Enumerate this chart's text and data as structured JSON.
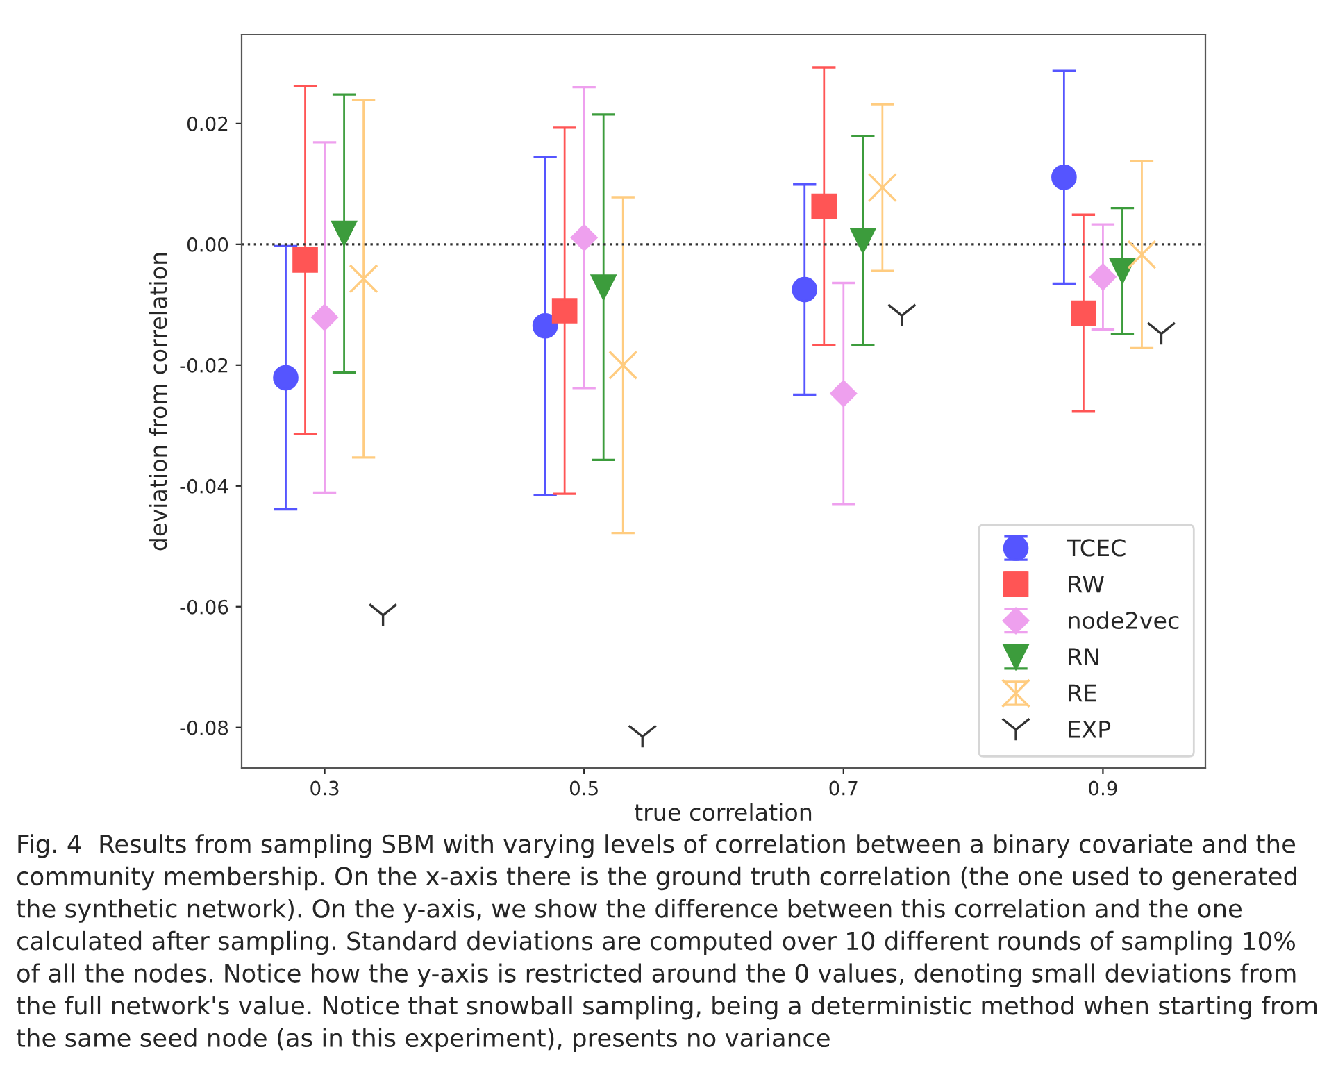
{
  "chart_data": {
    "type": "scatter",
    "xlabel": "true correlation",
    "ylabel": "deviation from correlation",
    "series": [
      {
        "name": "TCEC",
        "color": "#5555ff",
        "marker": "circle",
        "x": [
          0.27,
          0.47,
          0.67,
          0.87
        ],
        "values": [
          -0.0221,
          -0.0135,
          -0.0075,
          0.0111
        ],
        "errors": [
          0.0218,
          0.028,
          0.0174,
          0.0176
        ]
      },
      {
        "name": "RW",
        "color": "#ff5555",
        "marker": "square",
        "x": [
          0.285,
          0.485,
          0.685,
          0.885
        ],
        "values": [
          -0.0026,
          -0.011,
          0.0063,
          -0.0114
        ],
        "errors": [
          0.0288,
          0.0303,
          0.023,
          0.0163
        ]
      },
      {
        "name": "node2vec",
        "color": "#eea0ee",
        "marker": "diamond",
        "x": [
          0.3,
          0.5,
          0.7,
          0.9
        ],
        "values": [
          -0.0121,
          0.0011,
          -0.0247,
          -0.0054
        ],
        "errors": [
          0.029,
          0.0249,
          0.0183,
          0.0087
        ]
      },
      {
        "name": "RN",
        "color": "#3c9c3c",
        "marker": "triangle_down",
        "x": [
          0.315,
          0.515,
          0.715,
          0.915
        ],
        "values": [
          0.0018,
          -0.0071,
          0.0006,
          -0.0044
        ],
        "errors": [
          0.023,
          0.0286,
          0.0173,
          0.0104
        ]
      },
      {
        "name": "RE",
        "color": "#ffcc80",
        "marker": "cross",
        "x": [
          0.33,
          0.53,
          0.73,
          0.93
        ],
        "values": [
          -0.0057,
          -0.02,
          0.0094,
          -0.0017
        ],
        "errors": [
          0.0296,
          0.0278,
          0.0138,
          0.0155
        ]
      },
      {
        "name": "EXP",
        "color": "#333333",
        "x": [
          0.345,
          0.545,
          0.745,
          0.945
        ],
        "values": [
          -0.0614,
          -0.0815,
          -0.0118,
          -0.0148
        ]
      }
    ],
    "xlim": [
      0.236,
      0.979
    ],
    "ylim": [
      -0.0867,
      0.0347
    ],
    "xticks": [
      0.3,
      0.5,
      0.7,
      0.9
    ],
    "yticks": [
      {
        "value": 0.02,
        "label": "0.02"
      },
      {
        "value": 0.0,
        "label": "0.00"
      },
      {
        "value": -0.02,
        "label": "-0.02"
      },
      {
        "value": -0.04,
        "label": "-0.04"
      },
      {
        "value": -0.06,
        "label": "-0.06"
      },
      {
        "value": -0.08,
        "label": "-0.08"
      }
    ],
    "ref_lines": [
      {
        "axis": "y",
        "value": 0,
        "color": "#333333",
        "line_style": "dotted"
      }
    ],
    "legend": "bottom right",
    "grid": false,
    "annotations": [
      "Fig. 4  Results from sampling SBM with varying levels of correlation between a binary covariate and the community membership. On the x-axis there is the ground truth correlation (the one used to generated the synthetic network). On the y-axis, we show the difference between this correlation and the one calculated after sampling. Standard deviations are computed over 10 different rounds of sampling 10% of all the nodes. Notice how the y-axis is restricted around the 0 values, denoting small deviations from the full network's value. Notice that snowball sampling, being a deterministic method when starting from the same seed node (as in this experiment), presents no variance"
    ]
  }
}
